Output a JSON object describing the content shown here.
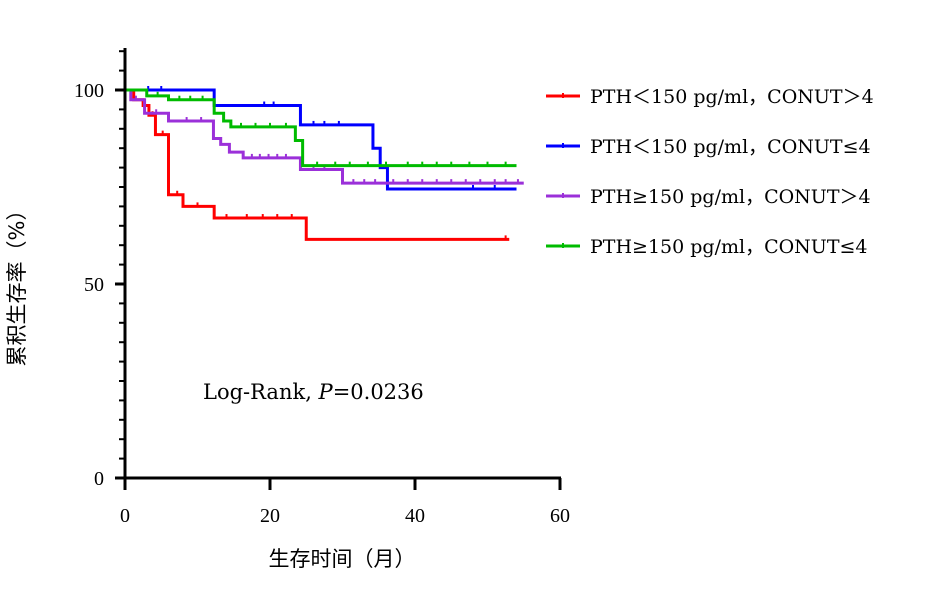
{
  "chart_data": {
    "type": "line",
    "subtype": "kaplan-meier",
    "xlabel": "生存时间（月）",
    "ylabel": "累积生存率（%）",
    "xlim": [
      0,
      60
    ],
    "ylim": [
      0,
      110
    ],
    "xticks": [
      0,
      20,
      40,
      60
    ],
    "yticks": [
      0,
      50,
      100
    ],
    "legend_position": "right",
    "annotation": {
      "prefix": "Log-Rank, ",
      "p_symbol": "P",
      "p_value": "=0.0236"
    },
    "series": [
      {
        "name": "PTH＜150 pg/ml，CONUT＞4",
        "color": "#ff0000",
        "steps": [
          [
            0,
            100
          ],
          [
            1.2,
            97.5
          ],
          [
            2.5,
            96
          ],
          [
            3.3,
            93.5
          ],
          [
            4.2,
            88.5
          ],
          [
            6,
            73
          ],
          [
            8,
            70
          ],
          [
            12.3,
            67
          ],
          [
            25,
            61.5
          ],
          [
            53,
            61.5
          ]
        ],
        "censored": [
          [
            3.8,
            93.5
          ],
          [
            5.2,
            88.5
          ],
          [
            7.2,
            73
          ],
          [
            10,
            70
          ],
          [
            14,
            67
          ],
          [
            16.8,
            67
          ],
          [
            19,
            67
          ],
          [
            21,
            67
          ],
          [
            23,
            67
          ],
          [
            52.5,
            61.5
          ]
        ]
      },
      {
        "name": "PTH＜150 pg/ml，CONUT≤4",
        "color": "#0000ff",
        "steps": [
          [
            0,
            100
          ],
          [
            12.3,
            96
          ],
          [
            24.2,
            91
          ],
          [
            34.2,
            85
          ],
          [
            35.2,
            80
          ],
          [
            36.2,
            74.5
          ],
          [
            54,
            74.5
          ]
        ],
        "censored": [
          [
            3.2,
            100
          ],
          [
            5,
            100
          ],
          [
            19.2,
            96
          ],
          [
            20.5,
            96
          ],
          [
            26,
            91
          ],
          [
            27.5,
            91
          ],
          [
            29.5,
            91
          ],
          [
            48,
            74.5
          ],
          [
            51,
            74.5
          ]
        ]
      },
      {
        "name": "PTH≥150 pg/ml，CONUT＞4",
        "color": "#9b30d9",
        "steps": [
          [
            0,
            100
          ],
          [
            0.8,
            97.5
          ],
          [
            2.7,
            94
          ],
          [
            6,
            92
          ],
          [
            12.2,
            87.5
          ],
          [
            13.2,
            86
          ],
          [
            14.4,
            84
          ],
          [
            16.3,
            82.5
          ],
          [
            24.2,
            79.5
          ],
          [
            30,
            76
          ],
          [
            55,
            76
          ]
        ],
        "censored": [
          [
            1.5,
            97.5
          ],
          [
            4.3,
            94
          ],
          [
            8.5,
            92
          ],
          [
            10.5,
            92
          ],
          [
            17.5,
            82.5
          ],
          [
            18.6,
            82.5
          ],
          [
            19.8,
            82.5
          ],
          [
            21,
            82.5
          ],
          [
            22.2,
            82.5
          ],
          [
            26,
            79.5
          ],
          [
            27.5,
            79.5
          ],
          [
            31.5,
            76
          ],
          [
            33,
            76
          ],
          [
            34.5,
            76
          ],
          [
            37,
            76
          ],
          [
            39,
            76
          ],
          [
            41,
            76
          ],
          [
            43,
            76
          ],
          [
            45,
            76
          ],
          [
            47,
            76
          ],
          [
            49,
            76
          ],
          [
            51,
            76
          ],
          [
            52.5,
            76
          ],
          [
            54.2,
            76
          ]
        ]
      },
      {
        "name": "PTH≥150 pg/ml，CONUT≤4",
        "color": "#00bb00",
        "steps": [
          [
            0,
            100
          ],
          [
            3,
            98.5
          ],
          [
            6,
            97.5
          ],
          [
            12.3,
            94
          ],
          [
            13.6,
            92
          ],
          [
            14.6,
            90.5
          ],
          [
            23.5,
            87
          ],
          [
            24.5,
            80.5
          ],
          [
            54,
            80.5
          ]
        ],
        "censored": [
          [
            4.5,
            98.5
          ],
          [
            7.5,
            97.5
          ],
          [
            9,
            97.5
          ],
          [
            10.7,
            97.5
          ],
          [
            16,
            90.5
          ],
          [
            18,
            90.5
          ],
          [
            20,
            90.5
          ],
          [
            22.2,
            90.5
          ],
          [
            26.5,
            80.5
          ],
          [
            29,
            80.5
          ],
          [
            31,
            80.5
          ],
          [
            33.5,
            80.5
          ],
          [
            36,
            80.5
          ],
          [
            39,
            80.5
          ],
          [
            41,
            80.5
          ],
          [
            43,
            80.5
          ],
          [
            45,
            80.5
          ],
          [
            47.5,
            80.5
          ],
          [
            50,
            80.5
          ],
          [
            52.5,
            80.5
          ]
        ]
      }
    ]
  }
}
